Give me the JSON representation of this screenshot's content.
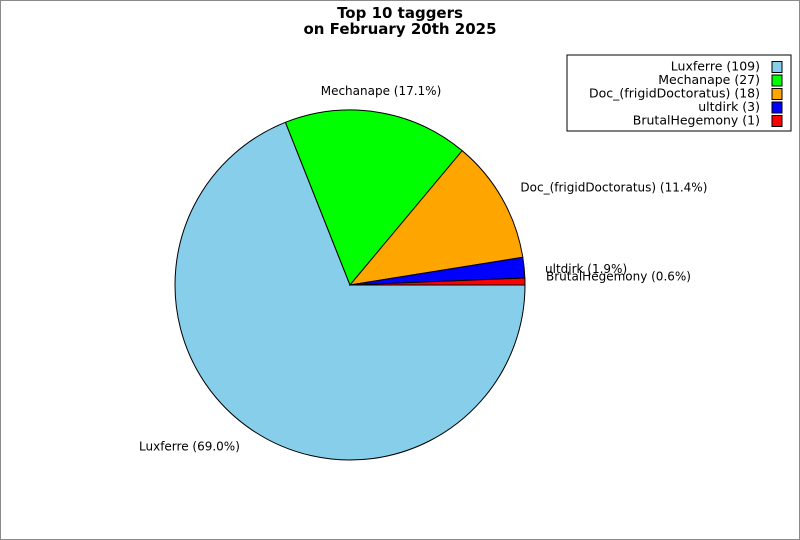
{
  "chart_data": {
    "type": "pie",
    "title_line1": "Top 10 taggers",
    "title_line2": "on February 20th 2025",
    "slices": [
      {
        "name": "Luxferre",
        "value": 109,
        "percent_label": "Luxferre (69.0%)",
        "legend_label": "Luxferre (109)",
        "color": "#87ceeb"
      },
      {
        "name": "Mechanape",
        "value": 27,
        "percent_label": "Mechanape (17.1%)",
        "legend_label": "Mechanape (27)",
        "color": "#00ff00"
      },
      {
        "name": "Doc_(frigidDoctoratus)",
        "value": 18,
        "percent_label": "Doc_(frigidDoctoratus) (11.4%)",
        "legend_label": "Doc_(frigidDoctoratus) (18)",
        "color": "#ffa500"
      },
      {
        "name": "ultdirk",
        "value": 3,
        "percent_label": "ultdirk (1.9%)",
        "legend_label": "ultdirk (3)",
        "color": "#0000ff"
      },
      {
        "name": "BrutalHegemony",
        "value": 1,
        "percent_label": "BrutalHegemony (0.6%)",
        "legend_label": "BrutalHegemony (1)",
        "color": "#ff0000"
      }
    ],
    "start_angle_deg": 0,
    "direction": "clockwise",
    "legend_position": "top-right"
  }
}
